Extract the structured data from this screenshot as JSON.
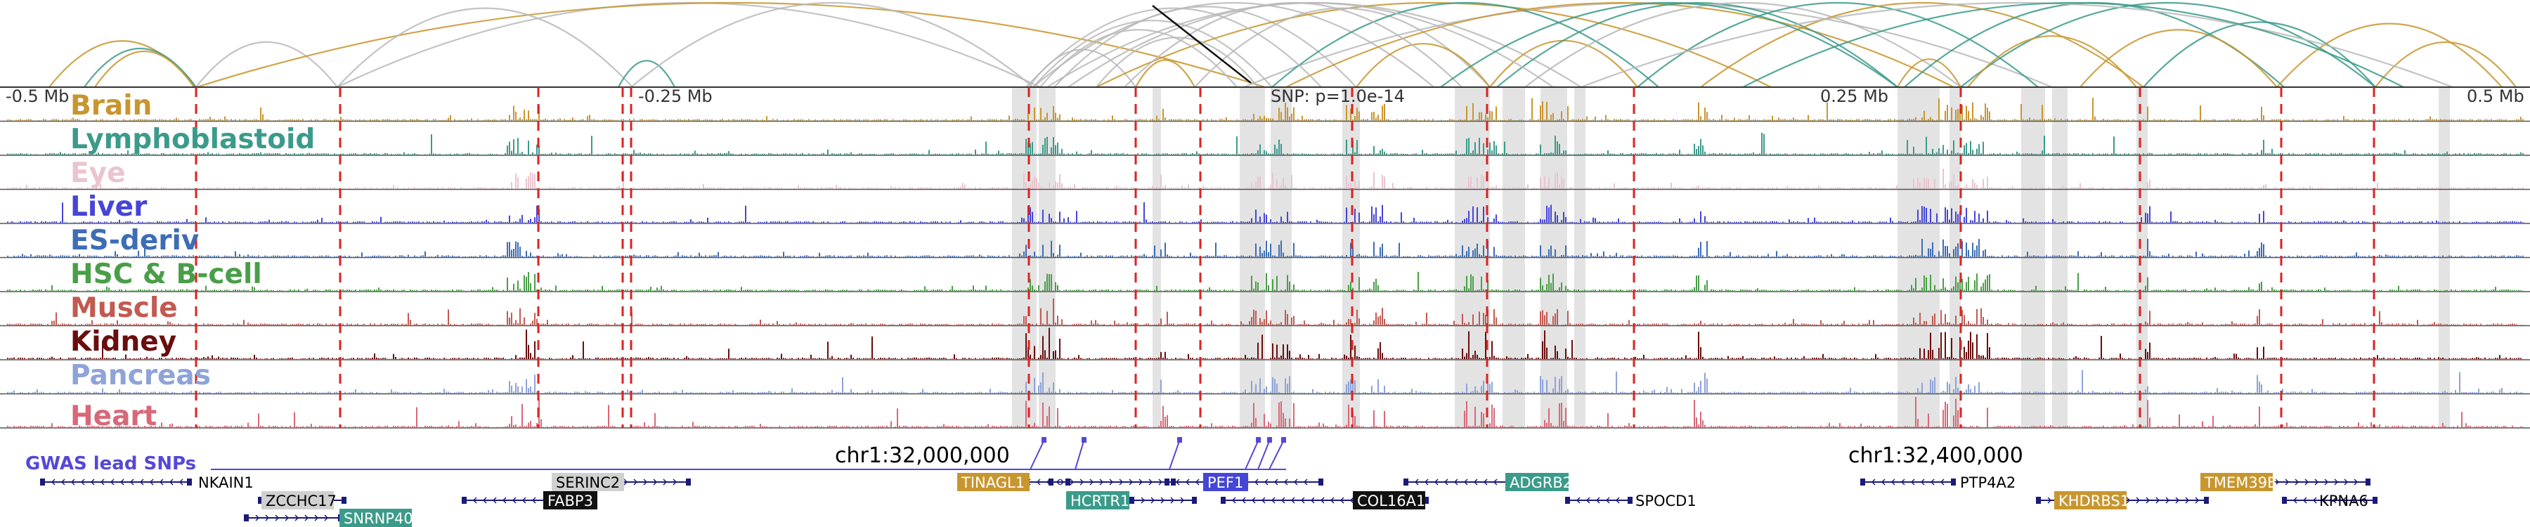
{
  "colors": {
    "arc_gray": "#b8b8b8",
    "arc_gold": "#c8962e",
    "arc_teal": "#3b9b8a",
    "dash_red": "#dd2222",
    "highlight": "#d9d9d9",
    "gwas_purple": "#5548d6",
    "gene_navy": "#1a1a7a",
    "frame": "#555555"
  },
  "axis": {
    "left_label": "-0.5 Mb",
    "left_mid_label": "-0.25 Mb",
    "center_label": "SNP: p=1.0e-14",
    "right_mid_label": "0.25 Mb",
    "right_label": "0.5 Mb"
  },
  "tracks": [
    {
      "name": "Brain",
      "color": "#c8962e"
    },
    {
      "name": "Lymphoblastoid",
      "color": "#3b9b8a"
    },
    {
      "name": "Eye",
      "color": "#eac4cf"
    },
    {
      "name": "Liver",
      "color": "#4545d8"
    },
    {
      "name": "ES-deriv",
      "color": "#3d6db5"
    },
    {
      "name": "HSC & B-cell",
      "color": "#4a9e48"
    },
    {
      "name": "Muscle",
      "color": "#c25a52"
    },
    {
      "name": "Kidney",
      "color": "#6a0d0d"
    },
    {
      "name": "Pancreas",
      "color": "#8ea3d8"
    },
    {
      "name": "Heart",
      "color": "#d86878"
    }
  ],
  "gwas": {
    "label": "GWAS lead SNPs",
    "coord_left": "chr1:32,000,000",
    "coord_right": "chr1:32,400,000"
  },
  "genes": [
    {
      "name": "NKAIN1",
      "style": "plain"
    },
    {
      "name": "ZCCHC17",
      "style": "box",
      "bg": "#d0d0d0",
      "fg": "#000000"
    },
    {
      "name": "SERINC2",
      "style": "box",
      "bg": "#d0d0d0",
      "fg": "#000000"
    },
    {
      "name": "FABP3",
      "style": "box",
      "bg": "#111111",
      "fg": "#ffffff"
    },
    {
      "name": "SNRNP40",
      "style": "box",
      "bg": "#3b9b8a",
      "fg": "#ffffff"
    },
    {
      "name": "TINAGL1",
      "style": "box",
      "bg": "#c8962e",
      "fg": "#ffffff"
    },
    {
      "name": "HCRTR1",
      "style": "box",
      "bg": "#3b9b8a",
      "fg": "#ffffff"
    },
    {
      "name": "PEF1",
      "style": "box",
      "bg": "#4545d8",
      "fg": "#ffffff"
    },
    {
      "name": "COL16A1",
      "style": "box",
      "bg": "#111111",
      "fg": "#ffffff"
    },
    {
      "name": "ADGRB2",
      "style": "box",
      "bg": "#3b9b8a",
      "fg": "#ffffff"
    },
    {
      "name": "SPOCD1",
      "style": "plain"
    },
    {
      "name": "PTP4A2",
      "style": "plain"
    },
    {
      "name": "KHDRBS1",
      "style": "box",
      "bg": "#c8962e",
      "fg": "#ffffff"
    },
    {
      "name": "TMEM39B",
      "style": "box",
      "bg": "#c8962e",
      "fg": "#ffffff"
    },
    {
      "name": "KPNA6",
      "style": "plain"
    }
  ]
}
